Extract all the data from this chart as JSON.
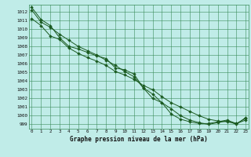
{
  "title": "Graphe pression niveau de la mer (hPa)",
  "bg_color": "#c0ece8",
  "grid_color": "#3a8c5a",
  "line_color": "#1a5a20",
  "xlim": [
    -0.3,
    23.3
  ],
  "ylim": [
    998.5,
    1012.8
  ],
  "yticks": [
    999,
    1000,
    1001,
    1002,
    1003,
    1004,
    1005,
    1006,
    1007,
    1008,
    1009,
    1010,
    1011,
    1012
  ],
  "xticks": [
    0,
    1,
    2,
    3,
    4,
    5,
    6,
    7,
    8,
    9,
    10,
    11,
    12,
    13,
    14,
    15,
    16,
    17,
    18,
    19,
    20,
    21,
    22,
    23
  ],
  "series": [
    [
      1012.5,
      1011.1,
      1010.4,
      1009.0,
      1008.0,
      1007.7,
      1007.3,
      1006.9,
      1006.6,
      1005.5,
      1005.3,
      1004.8,
      1003.2,
      1002.0,
      1001.5,
      1000.2,
      999.6,
      999.3,
      999.1,
      999.1,
      999.3,
      999.5,
      999.1,
      999.7
    ],
    [
      1011.2,
      1010.4,
      1009.2,
      1008.8,
      1007.8,
      1007.2,
      1006.7,
      1006.3,
      1005.8,
      1005.1,
      1004.7,
      1004.2,
      1003.5,
      1003.0,
      1002.2,
      1001.5,
      1001.0,
      1000.5,
      1000.0,
      999.6,
      999.4,
      999.3,
      999.1,
      999.5
    ],
    [
      1012.2,
      1010.8,
      1010.2,
      1009.4,
      1008.7,
      1008.0,
      1007.5,
      1007.0,
      1006.4,
      1005.8,
      1005.1,
      1004.5,
      1003.2,
      1002.5,
      1001.5,
      1000.8,
      1000.0,
      999.5,
      999.2,
      999.0,
      999.2,
      999.4,
      999.0,
      999.8
    ]
  ],
  "ylabel_fontsize": 4.5,
  "xlabel_fontsize": 5.5,
  "title_fontsize": 6.0,
  "tick_fontsize": 4.2,
  "linewidth": 0.7,
  "markersize": 2.0
}
